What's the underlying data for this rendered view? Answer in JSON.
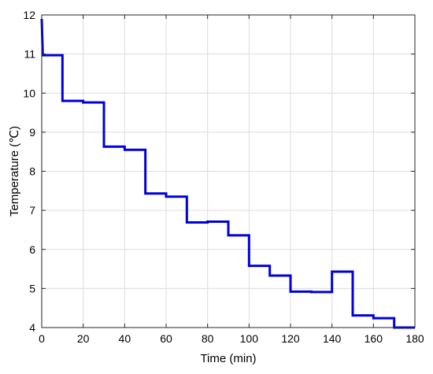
{
  "chart_data": {
    "type": "line",
    "title": "",
    "xlabel": "Time (min)",
    "ylabel": "Temperature (℃)",
    "xlim": [
      0,
      180
    ],
    "ylim": [
      4,
      12
    ],
    "xticks": [
      0,
      20,
      40,
      60,
      80,
      100,
      120,
      140,
      160,
      180
    ],
    "yticks": [
      4,
      5,
      6,
      7,
      8,
      9,
      10,
      11,
      12
    ],
    "grid": true,
    "line_style": "step",
    "series": [
      {
        "color": "#0000dd",
        "x": [
          0,
          0.5,
          10,
          10,
          20,
          20,
          30,
          30,
          40,
          40,
          50,
          50,
          60,
          60,
          70,
          70,
          80,
          80,
          90,
          90,
          100,
          100,
          110,
          110,
          120,
          120,
          130,
          130,
          140,
          140,
          150,
          150,
          160,
          160,
          170,
          170,
          180
        ],
        "y": [
          11.9,
          10.97,
          10.97,
          9.8,
          9.8,
          9.76,
          9.76,
          8.63,
          8.63,
          8.55,
          8.55,
          7.43,
          7.43,
          7.35,
          7.35,
          6.69,
          6.69,
          6.71,
          6.71,
          6.36,
          6.36,
          5.58,
          5.58,
          5.33,
          5.33,
          4.92,
          4.92,
          4.91,
          4.91,
          5.43,
          5.43,
          4.31,
          4.31,
          4.24,
          4.24,
          4.0,
          4.0
        ]
      }
    ]
  }
}
